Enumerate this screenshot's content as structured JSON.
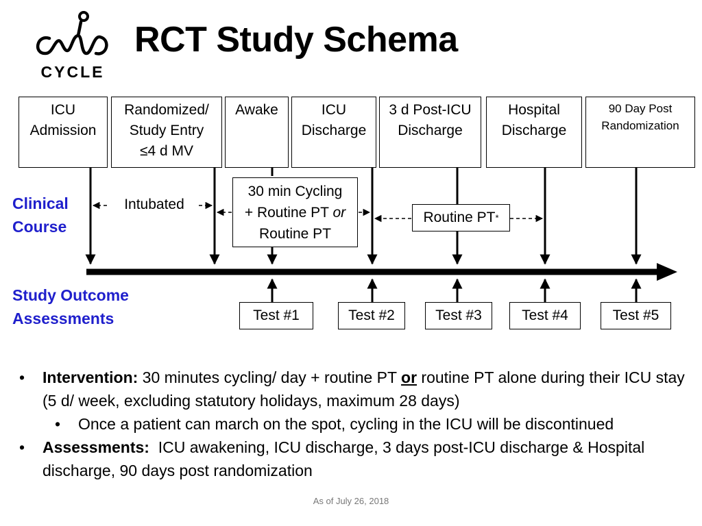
{
  "logo": {
    "word": "CYCLE"
  },
  "title": "RCT Study Schema",
  "timepoints": [
    {
      "lines": [
        "ICU",
        "Admission"
      ]
    },
    {
      "lines": [
        "Randomized/",
        "Study Entry",
        "≤4 d MV"
      ]
    },
    {
      "lines": [
        "Awake"
      ]
    },
    {
      "lines": [
        "ICU",
        "Discharge"
      ]
    },
    {
      "lines": [
        "3 d Post-ICU",
        "Discharge"
      ]
    },
    {
      "lines": [
        "Hospital",
        "Discharge"
      ]
    },
    {
      "lines": [
        "90 Day Post",
        "Randomization"
      ]
    }
  ],
  "clinical_course": {
    "label_line1": "Clinical",
    "label_line2": "Course",
    "intubated": "Intubated",
    "intervention_line1": "30 min Cycling",
    "intervention_line2": "+ Routine PT",
    "intervention_or": "or",
    "intervention_line3": "Routine PT",
    "routine_pt": "Routine PT",
    "routine_pt_mark": "*"
  },
  "outcomes": {
    "label_line1": "Study Outcome",
    "label_line2": "Assessments",
    "tests": [
      "Test #1",
      "Test #2",
      "Test #3",
      "Test #4",
      "Test #5"
    ]
  },
  "bullets": {
    "dot": "•",
    "intervention_label": "Intervention:",
    "intervention_text_a": " 30 minutes cycling/ day + routine PT ",
    "intervention_or": "or",
    "intervention_text_b": " routine PT alone during their ICU stay (5 d/ week, excluding statutory holidays, maximum 28 days)",
    "sub": "Once a patient can march on the spot, cycling in the ICU will be discontinued",
    "assessments_label": "Assessments:",
    "assessments_text": "  ICU awakening, ICU discharge, 3 days post-ICU discharge & Hospital discharge, 90 days post randomization"
  },
  "footer": "As of July 26, 2018"
}
